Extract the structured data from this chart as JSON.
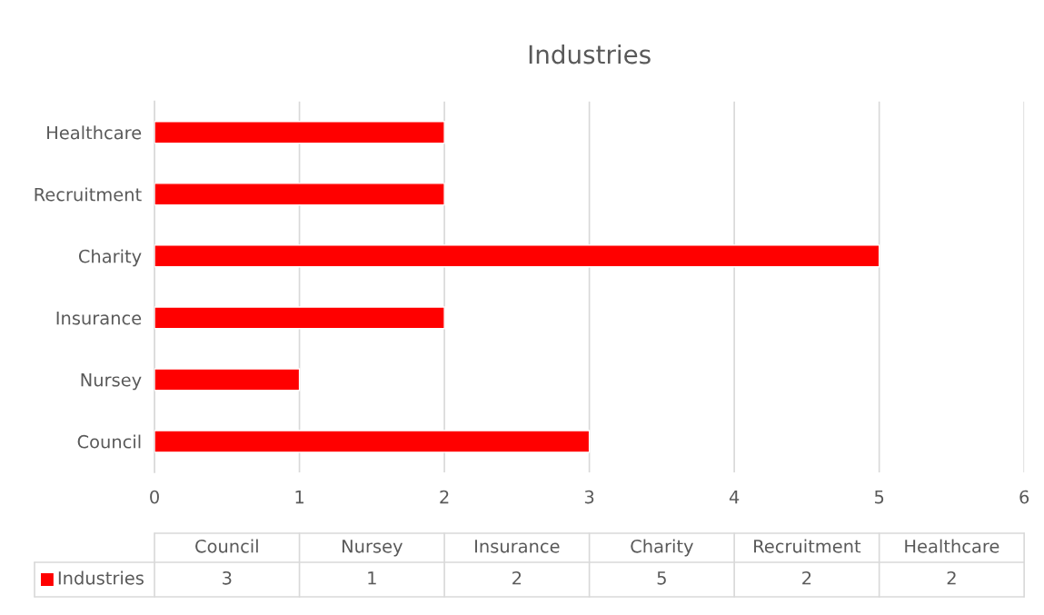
{
  "chart_data": {
    "type": "bar",
    "orientation": "horizontal",
    "title": "Industries",
    "categories": [
      "Healthcare",
      "Recruitment",
      "Charity",
      "Insurance",
      "Nursey",
      "Council"
    ],
    "series": [
      {
        "name": "Industries",
        "color": "#ff0000",
        "values": [
          2,
          2,
          5,
          2,
          1,
          3
        ]
      }
    ],
    "xlim": [
      0,
      6
    ],
    "xticks": [
      0,
      1,
      2,
      3,
      4,
      5,
      6
    ],
    "grid": "x",
    "legend": "bottom",
    "annotations": [
      "3",
      "1",
      "2",
      "5",
      "2",
      "2"
    ]
  }
}
